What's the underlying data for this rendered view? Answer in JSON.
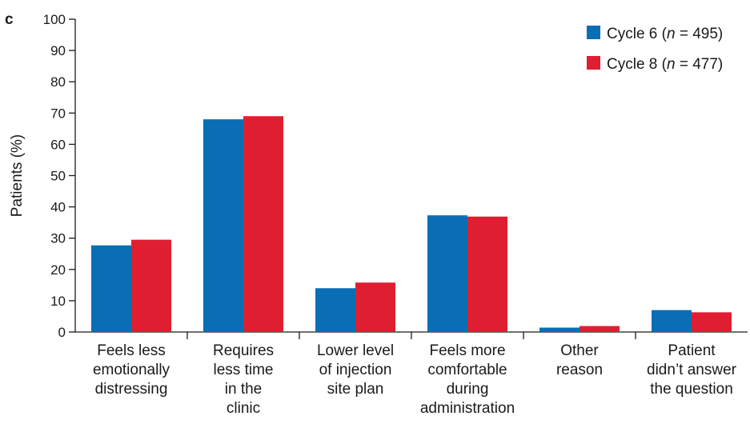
{
  "panel_label": "c",
  "chart_data": {
    "type": "bar",
    "title": "",
    "xlabel": "",
    "ylabel": "Patients (%)",
    "ylim": [
      0,
      100
    ],
    "yticks": [
      "0",
      "10",
      "20",
      "30",
      "40",
      "50",
      "60",
      "70",
      "80",
      "90",
      "100"
    ],
    "grid": false,
    "legend_position": "top-right",
    "categories": [
      "Feels less emotionally distressing",
      "Requires less time in the clinic",
      "Lower level of injection site plan",
      "Feels more comfortable during administration",
      "Other reason",
      "Patient didn’t answer the question"
    ],
    "category_label_lines": [
      [
        "Feels less",
        "emotionally",
        "distressing"
      ],
      [
        "Requires",
        "less time",
        "in the",
        "clinic"
      ],
      [
        "Lower level",
        "of injection",
        "site plan"
      ],
      [
        "Feels more",
        "comfortable",
        "during",
        "administration"
      ],
      [
        "Other",
        "reason"
      ],
      [
        "Patient",
        "didn’t answer",
        "the question"
      ]
    ],
    "series": [
      {
        "name": "Cycle 6 (n = 495)",
        "legend_prefix": "Cycle 6 (",
        "legend_italic": "n",
        "legend_suffix": " = 495)",
        "color": "#0a6eb4",
        "values": [
          27.7,
          68.0,
          14.0,
          37.3,
          1.4,
          7.0
        ]
      },
      {
        "name": "Cycle 8 (n = 477)",
        "legend_prefix": "Cycle 8 (",
        "legend_italic": "n",
        "legend_suffix": " = 477)",
        "color": "#e01e32",
        "values": [
          29.5,
          69.0,
          15.8,
          36.9,
          1.9,
          6.3
        ]
      }
    ]
  }
}
